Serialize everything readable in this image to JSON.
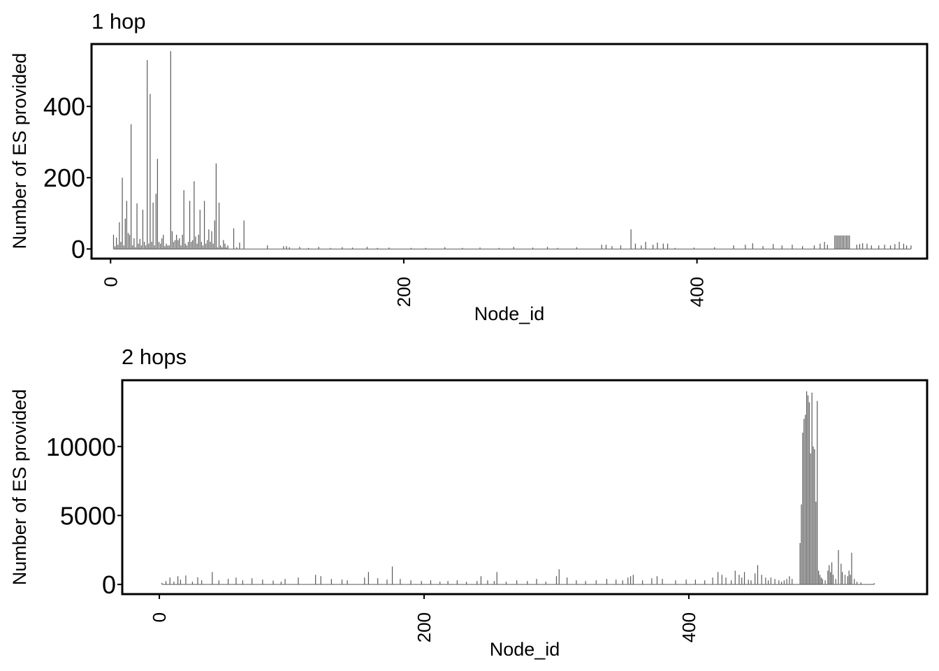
{
  "chart_data": [
    {
      "type": "bar",
      "title": "1 hop",
      "xlabel": "Node_id",
      "ylabel": "Number of ES provided",
      "xticks": [
        0,
        200,
        400
      ],
      "yticks": [
        0,
        200,
        400
      ],
      "xlim": [
        -13,
        557
      ],
      "ylim": [
        -27,
        575
      ],
      "grid": false,
      "bar_color": "#595959",
      "points": [
        [
          2,
          40
        ],
        [
          3,
          8
        ],
        [
          4,
          32
        ],
        [
          5,
          12
        ],
        [
          6,
          75
        ],
        [
          7,
          20
        ],
        [
          8,
          200
        ],
        [
          9,
          10
        ],
        [
          10,
          85
        ],
        [
          11,
          135
        ],
        [
          12,
          45
        ],
        [
          13,
          40
        ],
        [
          14,
          350
        ],
        [
          15,
          10
        ],
        [
          16,
          30
        ],
        [
          17,
          5
        ],
        [
          18,
          128
        ],
        [
          19,
          15
        ],
        [
          20,
          28
        ],
        [
          21,
          10
        ],
        [
          22,
          110
        ],
        [
          23,
          20
        ],
        [
          24,
          10
        ],
        [
          25,
          530
        ],
        [
          26,
          15
        ],
        [
          27,
          435
        ],
        [
          28,
          20
        ],
        [
          29,
          130
        ],
        [
          30,
          10
        ],
        [
          31,
          155
        ],
        [
          32,
          253
        ],
        [
          33,
          20
        ],
        [
          34,
          15
        ],
        [
          35,
          30
        ],
        [
          36,
          40
        ],
        [
          37,
          8
        ],
        [
          38,
          15
        ],
        [
          39,
          10
        ],
        [
          40,
          10
        ],
        [
          41,
          555
        ],
        [
          42,
          50
        ],
        [
          43,
          20
        ],
        [
          44,
          25
        ],
        [
          45,
          40
        ],
        [
          46,
          25
        ],
        [
          47,
          30
        ],
        [
          48,
          10
        ],
        [
          49,
          40
        ],
        [
          50,
          165
        ],
        [
          51,
          15
        ],
        [
          52,
          10
        ],
        [
          53,
          20
        ],
        [
          54,
          135
        ],
        [
          55,
          20
        ],
        [
          56,
          25
        ],
        [
          57,
          190
        ],
        [
          58,
          35
        ],
        [
          59,
          15
        ],
        [
          60,
          40
        ],
        [
          61,
          110
        ],
        [
          62,
          20
        ],
        [
          63,
          10
        ],
        [
          64,
          135
        ],
        [
          65,
          15
        ],
        [
          66,
          25
        ],
        [
          67,
          55
        ],
        [
          68,
          20
        ],
        [
          69,
          50
        ],
        [
          70,
          15
        ],
        [
          71,
          80
        ],
        [
          72,
          240
        ],
        [
          73,
          5
        ],
        [
          74,
          130
        ],
        [
          75,
          10
        ],
        [
          76,
          5
        ],
        [
          77,
          25
        ],
        [
          78,
          15
        ],
        [
          79,
          5
        ],
        [
          80,
          10
        ],
        [
          84,
          58
        ],
        [
          86,
          5
        ],
        [
          88,
          18
        ],
        [
          91,
          80
        ],
        [
          107,
          10
        ],
        [
          118,
          8
        ],
        [
          120,
          8
        ],
        [
          122,
          5
        ],
        [
          129,
          6
        ],
        [
          135,
          3
        ],
        [
          142,
          6
        ],
        [
          150,
          3
        ],
        [
          158,
          5
        ],
        [
          165,
          4
        ],
        [
          175,
          6
        ],
        [
          182,
          3
        ],
        [
          190,
          4
        ],
        [
          205,
          3
        ],
        [
          215,
          3
        ],
        [
          228,
          5
        ],
        [
          240,
          3
        ],
        [
          252,
          4
        ],
        [
          265,
          3
        ],
        [
          275,
          6
        ],
        [
          288,
          4
        ],
        [
          298,
          6
        ],
        [
          305,
          3
        ],
        [
          318,
          5
        ],
        [
          335,
          12
        ],
        [
          338,
          12
        ],
        [
          342,
          8
        ],
        [
          348,
          10
        ],
        [
          355,
          55
        ],
        [
          358,
          15
        ],
        [
          362,
          10
        ],
        [
          365,
          20
        ],
        [
          370,
          12
        ],
        [
          373,
          18
        ],
        [
          377,
          15
        ],
        [
          380,
          15
        ],
        [
          385,
          3
        ],
        [
          398,
          4
        ],
        [
          412,
          5
        ],
        [
          425,
          10
        ],
        [
          433,
          12
        ],
        [
          438,
          16
        ],
        [
          445,
          8
        ],
        [
          452,
          14
        ],
        [
          458,
          10
        ],
        [
          465,
          12
        ],
        [
          472,
          8
        ],
        [
          480,
          10
        ],
        [
          484,
          15
        ],
        [
          487,
          20
        ],
        [
          489,
          12
        ],
        [
          494,
          38
        ],
        [
          495,
          38
        ],
        [
          496,
          38
        ],
        [
          497,
          38
        ],
        [
          498,
          38
        ],
        [
          499,
          38
        ],
        [
          500,
          38
        ],
        [
          501,
          38
        ],
        [
          502,
          38
        ],
        [
          503,
          38
        ],
        [
          504,
          38
        ],
        [
          509,
          12
        ],
        [
          511,
          14
        ],
        [
          513,
          16
        ],
        [
          516,
          15
        ],
        [
          519,
          10
        ],
        [
          524,
          10
        ],
        [
          528,
          12
        ],
        [
          532,
          10
        ],
        [
          535,
          14
        ],
        [
          538,
          20
        ],
        [
          541,
          15
        ],
        [
          543,
          10
        ],
        [
          546,
          10
        ]
      ]
    },
    {
      "type": "bar",
      "title": "2 hops",
      "xlabel": "Node_id",
      "ylabel": "Number of ES provided",
      "xticks": [
        0,
        200,
        400
      ],
      "yticks": [
        0,
        5000,
        10000
      ],
      "xlim": [
        -28,
        580
      ],
      "ylim": [
        -700,
        14800
      ],
      "grid": false,
      "bar_color": "#595959",
      "points": [
        [
          2,
          120
        ],
        [
          5,
          250
        ],
        [
          8,
          500
        ],
        [
          11,
          200
        ],
        [
          14,
          600
        ],
        [
          16,
          350
        ],
        [
          20,
          650
        ],
        [
          25,
          200
        ],
        [
          29,
          520
        ],
        [
          32,
          300
        ],
        [
          40,
          900
        ],
        [
          45,
          300
        ],
        [
          52,
          400
        ],
        [
          58,
          500
        ],
        [
          63,
          300
        ],
        [
          70,
          450
        ],
        [
          78,
          350
        ],
        [
          86,
          280
        ],
        [
          92,
          200
        ],
        [
          95,
          400
        ],
        [
          105,
          500
        ],
        [
          118,
          700
        ],
        [
          122,
          600
        ],
        [
          130,
          400
        ],
        [
          138,
          350
        ],
        [
          142,
          300
        ],
        [
          155,
          500
        ],
        [
          158,
          900
        ],
        [
          165,
          450
        ],
        [
          172,
          350
        ],
        [
          176,
          1300
        ],
        [
          182,
          400
        ],
        [
          190,
          300
        ],
        [
          198,
          250
        ],
        [
          205,
          300
        ],
        [
          212,
          200
        ],
        [
          218,
          250
        ],
        [
          225,
          300
        ],
        [
          232,
          200
        ],
        [
          240,
          250
        ],
        [
          243,
          600
        ],
        [
          248,
          300
        ],
        [
          253,
          250
        ],
        [
          255,
          900
        ],
        [
          262,
          200
        ],
        [
          270,
          300
        ],
        [
          278,
          250
        ],
        [
          285,
          400
        ],
        [
          292,
          200
        ],
        [
          300,
          600
        ],
        [
          302,
          1100
        ],
        [
          308,
          500
        ],
        [
          315,
          300
        ],
        [
          322,
          250
        ],
        [
          330,
          300
        ],
        [
          338,
          400
        ],
        [
          345,
          350
        ],
        [
          350,
          300
        ],
        [
          354,
          500
        ],
        [
          356,
          600
        ],
        [
          358,
          700
        ],
        [
          365,
          300
        ],
        [
          372,
          450
        ],
        [
          376,
          600
        ],
        [
          380,
          400
        ],
        [
          390,
          300
        ],
        [
          398,
          350
        ],
        [
          405,
          350
        ],
        [
          412,
          300
        ],
        [
          418,
          500
        ],
        [
          422,
          900
        ],
        [
          425,
          700
        ],
        [
          428,
          500
        ],
        [
          432,
          300
        ],
        [
          435,
          1000
        ],
        [
          438,
          700
        ],
        [
          440,
          500
        ],
        [
          442,
          900
        ],
        [
          445,
          350
        ],
        [
          447,
          300
        ],
        [
          450,
          800
        ],
        [
          452,
          1400
        ],
        [
          455,
          700
        ],
        [
          458,
          500
        ],
        [
          460,
          300
        ],
        [
          462,
          500
        ],
        [
          465,
          400
        ],
        [
          468,
          300
        ],
        [
          470,
          200
        ],
        [
          472,
          300
        ],
        [
          474,
          400
        ],
        [
          476,
          600
        ],
        [
          478,
          400
        ],
        [
          484,
          3000
        ],
        [
          485,
          5800
        ],
        [
          486,
          11000
        ],
        [
          487,
          12000
        ],
        [
          488,
          12300
        ],
        [
          489,
          14000
        ],
        [
          490,
          13700
        ],
        [
          491,
          13200
        ],
        [
          492,
          9500
        ],
        [
          493,
          13900
        ],
        [
          494,
          10000
        ],
        [
          495,
          9800
        ],
        [
          496,
          6000
        ],
        [
          497,
          13300
        ],
        [
          498,
          1000
        ],
        [
          499,
          700
        ],
        [
          500,
          500
        ],
        [
          501,
          400
        ],
        [
          503,
          300
        ],
        [
          505,
          1000
        ],
        [
          506,
          1400
        ],
        [
          507,
          900
        ],
        [
          508,
          1600
        ],
        [
          509,
          700
        ],
        [
          511,
          400
        ],
        [
          513,
          2500
        ],
        [
          515,
          1500
        ],
        [
          516,
          900
        ],
        [
          518,
          700
        ],
        [
          520,
          600
        ],
        [
          521,
          1000
        ],
        [
          522,
          700
        ],
        [
          523,
          2300
        ],
        [
          525,
          400
        ],
        [
          527,
          200
        ],
        [
          530,
          150
        ],
        [
          540,
          100
        ]
      ]
    }
  ]
}
